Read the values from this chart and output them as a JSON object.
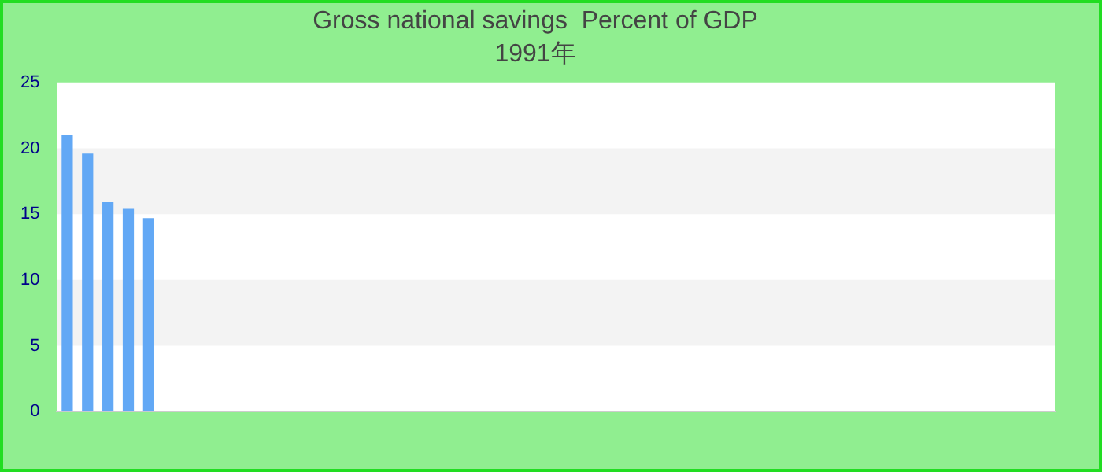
{
  "chart_data": {
    "type": "bar",
    "title": "Gross national savings  Percent of GDP",
    "subtitle": "1991年",
    "categories": [
      null,
      null,
      null,
      null,
      null,
      null,
      null,
      null,
      null,
      null,
      null,
      null,
      null,
      null,
      null,
      null,
      null,
      null,
      null,
      null,
      null,
      null,
      null,
      null,
      null,
      null,
      null,
      null,
      null,
      null,
      null,
      null,
      null,
      null,
      null,
      null,
      null,
      null,
      null,
      null,
      null,
      null,
      null,
      null,
      null,
      null,
      null,
      null,
      null
    ],
    "values": [
      21,
      19.6,
      15.9,
      15.4,
      14.7,
      null,
      null,
      null,
      null,
      null,
      null,
      null,
      null,
      null,
      null,
      null,
      null,
      null,
      null,
      null,
      null,
      null,
      null,
      null,
      null,
      null,
      null,
      null,
      null,
      null,
      null,
      null,
      null,
      null,
      null,
      null,
      null,
      null,
      null,
      null,
      null,
      null,
      null,
      null,
      null,
      null,
      null,
      null,
      null
    ],
    "color": "#62a8f5",
    "ylim": [
      0,
      25
    ],
    "yticks": [
      0,
      5,
      10,
      15,
      20,
      25
    ],
    "legend": false
  }
}
